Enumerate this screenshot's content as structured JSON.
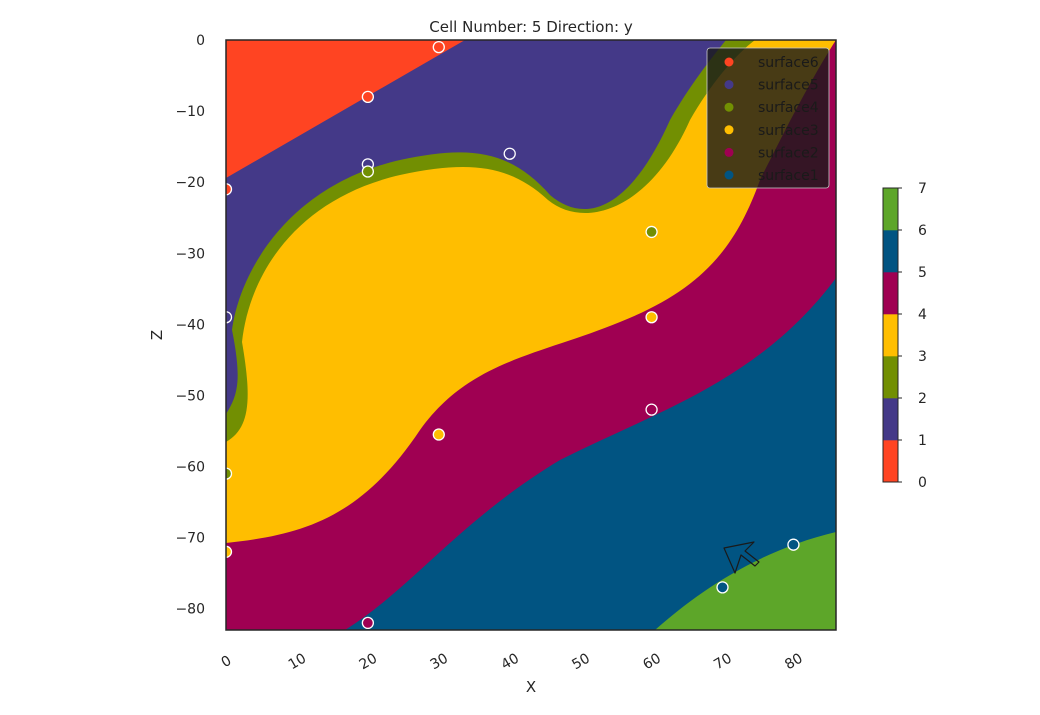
{
  "chart_data": {
    "type": "heatmap",
    "title": "Cell Number: 5 Direction: y",
    "xlabel": "X",
    "ylabel": "Z",
    "xlim": [
      0,
      86
    ],
    "ylim": [
      -83,
      0
    ],
    "xticks": [
      0,
      10,
      20,
      30,
      40,
      50,
      60,
      70,
      80
    ],
    "yticks": [
      0,
      -10,
      -20,
      -30,
      -40,
      -50,
      -60,
      -70,
      -80
    ],
    "grid": false,
    "legend_position": "top-right",
    "legend": [
      {
        "name": "surface6",
        "color": "#ff4422"
      },
      {
        "name": "surface5",
        "color": "#443988"
      },
      {
        "name": "surface4",
        "color": "#728f02"
      },
      {
        "name": "surface3",
        "color": "#ffbe00"
      },
      {
        "name": "surface2",
        "color": "#9f0052"
      },
      {
        "name": "surface1",
        "color": "#015482"
      }
    ],
    "colorbar": {
      "ticks": [
        0,
        1,
        2,
        3,
        4,
        5,
        6,
        7
      ],
      "colors": [
        "#ff4422",
        "#443988",
        "#728f02",
        "#ffbe00",
        "#9f0052",
        "#015482",
        "#5da629"
      ]
    },
    "points": [
      {
        "x": 30,
        "z": -1,
        "surface": "surface6"
      },
      {
        "x": 20,
        "z": -8,
        "surface": "surface6"
      },
      {
        "x": 0,
        "z": -21,
        "surface": "surface6"
      },
      {
        "x": 20,
        "z": -17.5,
        "surface": "surface5"
      },
      {
        "x": 40,
        "z": -16,
        "surface": "surface5"
      },
      {
        "x": 0,
        "z": -39,
        "surface": "surface5"
      },
      {
        "x": 20,
        "z": -18.5,
        "surface": "surface4"
      },
      {
        "x": 60,
        "z": -27,
        "surface": "surface4"
      },
      {
        "x": 0,
        "z": -61,
        "surface": "surface4"
      },
      {
        "x": 60,
        "z": -39,
        "surface": "surface3"
      },
      {
        "x": 30,
        "z": -55.5,
        "surface": "surface3"
      },
      {
        "x": 0,
        "z": -72,
        "surface": "surface3"
      },
      {
        "x": 60,
        "z": -52,
        "surface": "surface2"
      },
      {
        "x": 20,
        "z": -82,
        "surface": "surface2"
      },
      {
        "x": 70,
        "z": -77,
        "surface": "surface1"
      },
      {
        "x": 80,
        "z": -71,
        "surface": "surface1"
      }
    ]
  }
}
